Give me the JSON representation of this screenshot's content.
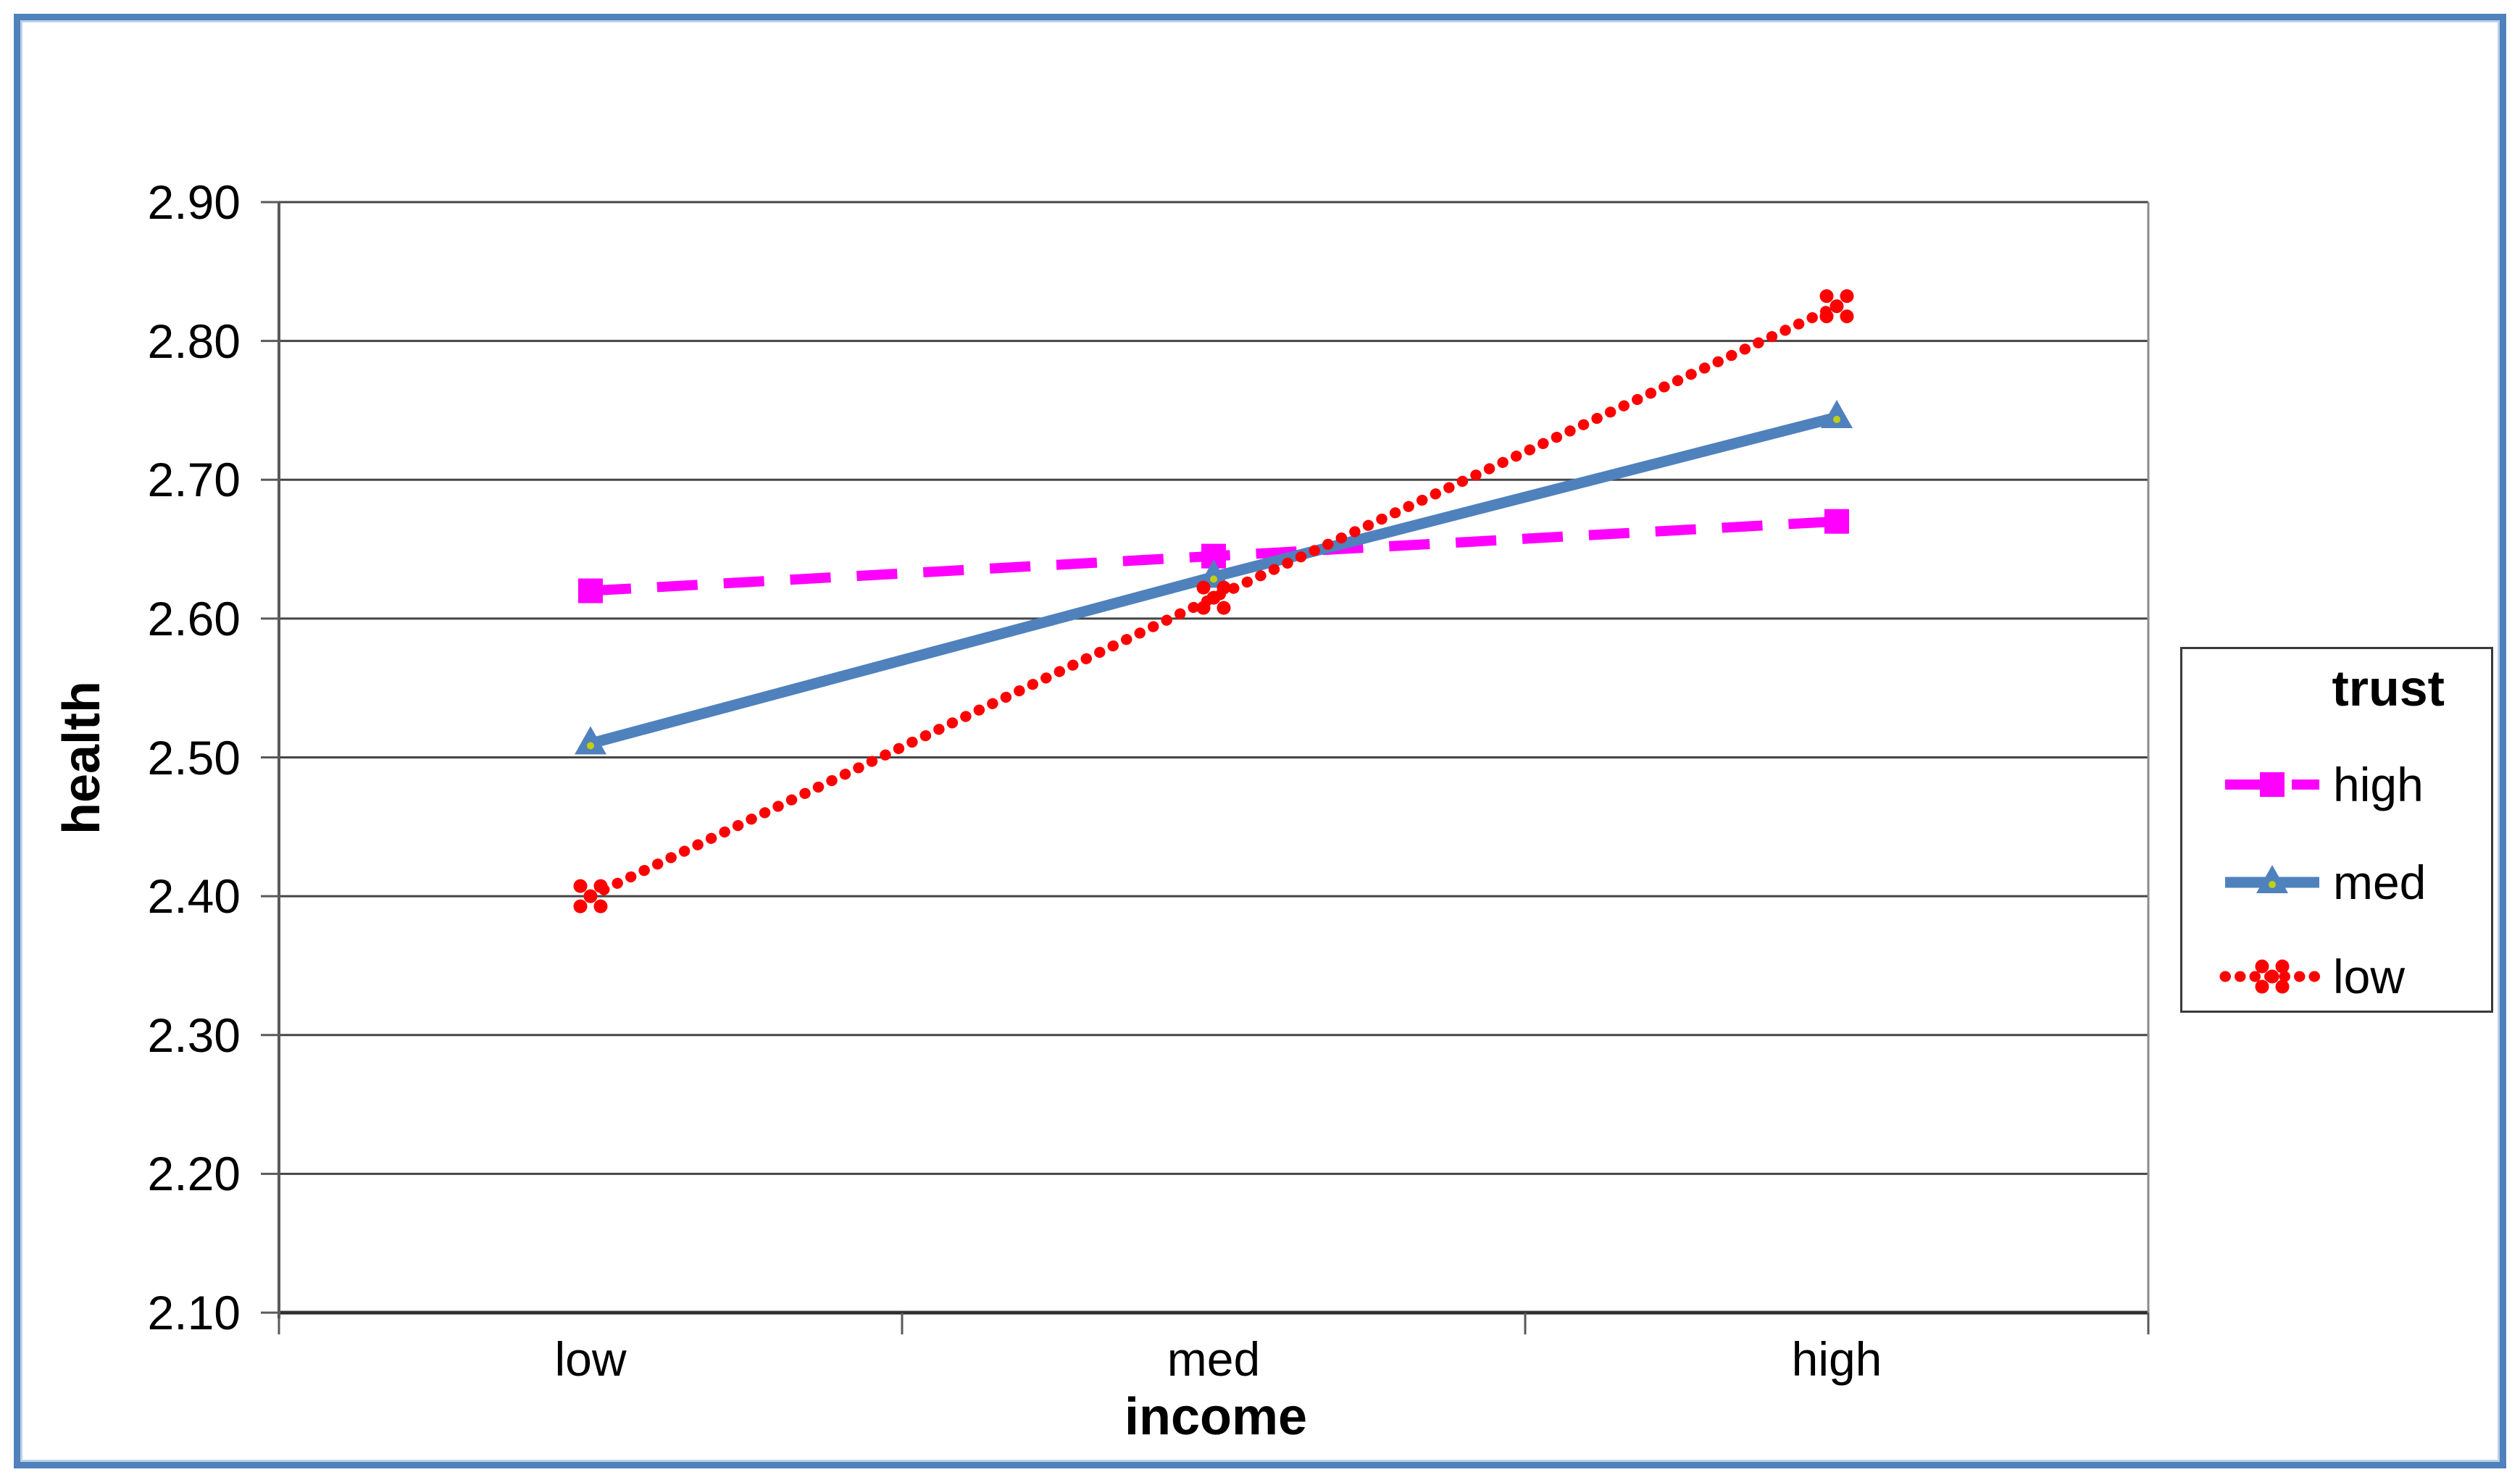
{
  "page": {
    "background": "#ffffff",
    "frame_color": "#4f81bd",
    "frame_inner_color": "#bdd2e8"
  },
  "chart_data": {
    "type": "line",
    "title": "",
    "xlabel": "income",
    "ylabel": "health",
    "categories": [
      "low",
      "med",
      "high"
    ],
    "series": [
      {
        "name": "high",
        "color": "#ff00ff",
        "line_style": "dashed",
        "marker": "square",
        "values": [
          2.62,
          2.645,
          2.67
        ]
      },
      {
        "name": "med",
        "color": "#4f81bd",
        "line_style": "solid",
        "marker": "triangle",
        "marker_center_dot": "#c3cf10",
        "values": [
          2.51,
          2.63,
          2.745
        ]
      },
      {
        "name": "low",
        "color": "#ff0000",
        "line_style": "dotted",
        "marker": "x",
        "values": [
          2.4,
          2.615,
          2.825
        ]
      }
    ],
    "ylim": [
      2.1,
      2.9
    ],
    "ytick_step": 0.1,
    "ytick_labels": [
      "2.90",
      "2.80",
      "2.70",
      "2.60",
      "2.50",
      "2.40",
      "2.30",
      "2.20",
      "2.10"
    ],
    "legend_title": "trust",
    "legend_position": "right",
    "grid": true,
    "grid_color": "#454545",
    "axis_line_color": "#5a5a5a",
    "plot_right_border_color": "#8c8c8c",
    "tick_color": "#5a5a5a"
  }
}
